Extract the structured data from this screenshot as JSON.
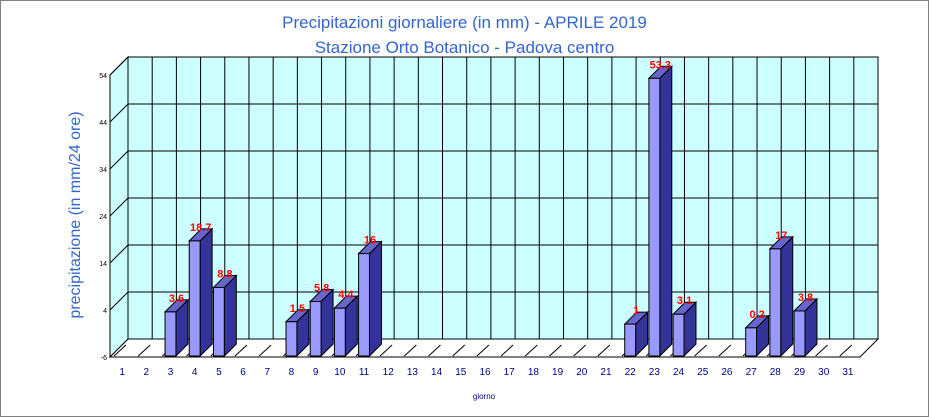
{
  "chart_data": {
    "type": "bar",
    "title": "Precipitazioni giornaliere (in mm) - APRILE 2019",
    "subtitle": "Stazione Orto Botanico - Padova centro",
    "xlabel": "giorno",
    "ylabel": "precipitazione (in mm/24 ore)",
    "categories": [
      "1",
      "2",
      "3",
      "4",
      "5",
      "6",
      "7",
      "8",
      "9",
      "10",
      "11",
      "12",
      "13",
      "14",
      "15",
      "16",
      "17",
      "18",
      "19",
      "20",
      "21",
      "22",
      "23",
      "24",
      "25",
      "26",
      "27",
      "28",
      "29",
      "30",
      "31"
    ],
    "values": [
      null,
      null,
      3.6,
      18.7,
      8.8,
      null,
      null,
      1.5,
      5.8,
      4.4,
      16,
      null,
      null,
      null,
      null,
      null,
      null,
      null,
      null,
      null,
      null,
      1,
      53.3,
      3.1,
      null,
      null,
      0.2,
      17,
      3.8,
      null,
      null
    ],
    "data_labels": [
      "",
      "",
      "3.6",
      "18.7",
      "8.8",
      "",
      "",
      "1.5",
      "5.8",
      "4.4",
      "16",
      "",
      "",
      "",
      "",
      "",
      "",
      "",
      "",
      "",
      "",
      "1",
      "53.3",
      "3.1",
      "",
      "",
      "0.2",
      "17",
      "3.8",
      "",
      ""
    ],
    "ylim": [
      -6,
      54
    ],
    "yticks": [
      -6,
      4,
      14,
      24,
      34,
      44,
      54
    ],
    "grid": true,
    "colors": {
      "wall": "#ccffff",
      "bar_front": "#9999ff",
      "bar_side": "#333399",
      "bar_top": "#6666cc",
      "data_label": "#ff0000",
      "title": "#3366cc",
      "tick_label": "#000080"
    }
  }
}
